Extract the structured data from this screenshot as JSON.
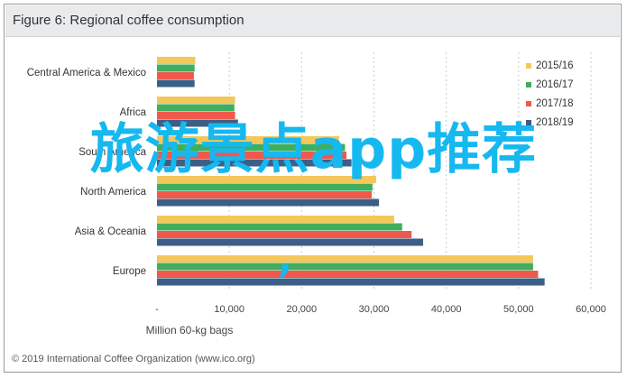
{
  "figure": {
    "title": "Figure 6: Regional coffee consumption",
    "copyright": "© 2019 International Coffee Organization (www.ico.org)",
    "overlay_text": "旅游景点app推荐",
    "overlay_comma": ","
  },
  "colors": {
    "2015/16": "#f4c75a",
    "2016/17": "#3fae5e",
    "2017/18": "#f0584c",
    "2018/19": "#3c5f86",
    "overlay": "#16b8f0"
  },
  "chart_data": {
    "type": "bar",
    "orientation": "horizontal",
    "title": "Figure 6: Regional coffee consumption",
    "xlabel": "Million 60-kg bags",
    "ylabel": "",
    "xlim": [
      0,
      60000
    ],
    "xticks": [
      0,
      10000,
      20000,
      30000,
      40000,
      50000,
      60000
    ],
    "xtick_labels": [
      "-",
      "10,000",
      "20,000",
      "30,000",
      "40,000",
      "50,000",
      "60,000"
    ],
    "grid": "vertical dashed",
    "legend_position": "top-right",
    "categories": [
      "Central America & Mexico",
      "Africa",
      "South America",
      "North America",
      "Asia & Oceania",
      "Europe"
    ],
    "series": [
      {
        "name": "2015/16",
        "values": [
          5300,
          10800,
          25200,
          30300,
          32800,
          52000
        ]
      },
      {
        "name": "2016/17",
        "values": [
          5200,
          10700,
          26000,
          29800,
          33900,
          52000
        ]
      },
      {
        "name": "2017/18",
        "values": [
          5100,
          10800,
          26200,
          29700,
          35200,
          52700
        ]
      },
      {
        "name": "2018/19",
        "values": [
          5200,
          11200,
          26900,
          30700,
          36800,
          53600
        ]
      }
    ]
  }
}
